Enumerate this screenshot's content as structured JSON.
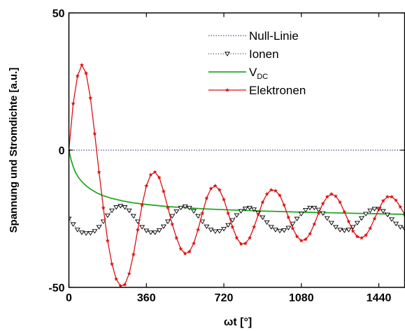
{
  "chart_data": {
    "type": "line",
    "title": "",
    "xlabel": "ωt [°]",
    "ylabel": "Spannung und Stromdichte [a.u.]",
    "xlim": [
      0,
      1560
    ],
    "ylim": [
      -50,
      50
    ],
    "xticks": [
      0,
      360,
      720,
      1080,
      1440
    ],
    "yticks": [
      -50,
      0,
      50
    ],
    "grid": false,
    "legend_position": "top-right",
    "legend": [
      {
        "key": "null",
        "label": "Null-Linie",
        "sub": ""
      },
      {
        "key": "ionen",
        "label": "Ionen",
        "sub": ""
      },
      {
        "key": "vdc",
        "label": "V",
        "sub": "DC"
      },
      {
        "key": "elektronen",
        "label": "Elektronen",
        "sub": ""
      }
    ],
    "series": [
      {
        "key": "null",
        "name": "Null-Linie",
        "style": "dotted",
        "color": "#1a237e",
        "x": [
          0,
          1560
        ],
        "y": [
          0,
          0
        ]
      },
      {
        "key": "vdc",
        "name": "V_DC",
        "style": "solid",
        "color": "#22aa22",
        "x": [
          0,
          10,
          20,
          30,
          45,
          60,
          80,
          100,
          130,
          160,
          200,
          250,
          300,
          360,
          450,
          540,
          630,
          720,
          900,
          1080,
          1260,
          1440,
          1560
        ],
        "y": [
          0,
          -3.5,
          -6.0,
          -8.0,
          -10.0,
          -11.5,
          -13.0,
          -14.2,
          -15.6,
          -16.6,
          -17.6,
          -18.5,
          -19.2,
          -19.8,
          -20.5,
          -21.0,
          -21.4,
          -21.7,
          -22.2,
          -22.6,
          -22.9,
          -23.2,
          -23.4
        ]
      },
      {
        "key": "ionen",
        "name": "Ionen",
        "style": "dotted-triangle",
        "color": "#000000",
        "x": [
          0,
          20,
          40,
          60,
          80,
          100,
          120,
          140,
          160,
          180,
          200,
          220,
          240,
          260,
          280,
          300,
          320,
          340,
          360,
          380,
          400,
          420,
          440,
          460,
          480,
          500,
          520,
          540,
          560,
          580,
          600,
          620,
          640,
          660,
          680,
          700,
          720,
          740,
          760,
          780,
          800,
          820,
          840,
          860,
          880,
          900,
          920,
          940,
          960,
          980,
          1000,
          1020,
          1040,
          1060,
          1080,
          1100,
          1120,
          1140,
          1160,
          1180,
          1200,
          1220,
          1240,
          1260,
          1280,
          1300,
          1320,
          1340,
          1360,
          1380,
          1400,
          1420,
          1440,
          1460,
          1480,
          1500,
          1520,
          1540,
          1560
        ],
        "y": [
          -25.0,
          -27.0,
          -29.0,
          -30.0,
          -30.3,
          -30.2,
          -29.5,
          -28.0,
          -26.0,
          -23.8,
          -22.0,
          -20.8,
          -20.3,
          -20.8,
          -22.0,
          -24.0,
          -26.0,
          -28.0,
          -29.3,
          -30.0,
          -30.0,
          -29.2,
          -27.8,
          -26.0,
          -24.0,
          -22.3,
          -21.0,
          -20.5,
          -21.0,
          -22.2,
          -24.0,
          -26.0,
          -27.8,
          -29.0,
          -29.6,
          -29.5,
          -28.7,
          -27.3,
          -25.5,
          -23.7,
          -22.2,
          -21.3,
          -21.0,
          -21.6,
          -22.8,
          -24.5,
          -26.3,
          -28.0,
          -29.0,
          -29.4,
          -29.2,
          -28.3,
          -26.8,
          -25.0,
          -23.2,
          -21.8,
          -21.0,
          -21.0,
          -21.7,
          -23.0,
          -24.8,
          -26.5,
          -28.0,
          -29.0,
          -29.3,
          -29.0,
          -28.0,
          -26.5,
          -24.8,
          -23.2,
          -22.0,
          -21.4,
          -21.4,
          -22.2,
          -23.5,
          -25.2,
          -26.8,
          -28.0,
          -28.6
        ]
      },
      {
        "key": "elektronen",
        "name": "Elektronen",
        "style": "solid-star",
        "color": "#dd1111",
        "x": [
          0,
          20,
          40,
          60,
          80,
          100,
          120,
          140,
          160,
          180,
          200,
          220,
          240,
          260,
          280,
          300,
          320,
          340,
          360,
          380,
          400,
          420,
          440,
          460,
          480,
          500,
          520,
          540,
          560,
          580,
          600,
          620,
          640,
          660,
          680,
          700,
          720,
          740,
          760,
          780,
          800,
          820,
          840,
          860,
          880,
          900,
          920,
          940,
          960,
          980,
          1000,
          1020,
          1040,
          1060,
          1080,
          1100,
          1120,
          1140,
          1160,
          1180,
          1200,
          1220,
          1240,
          1260,
          1280,
          1300,
          1320,
          1340,
          1360,
          1380,
          1400,
          1420,
          1440,
          1460,
          1480,
          1500,
          1520,
          1540,
          1560
        ],
        "y": [
          0,
          17.0,
          27.0,
          31.0,
          28.0,
          19.0,
          6.0,
          -8.0,
          -21.0,
          -33.0,
          -41.5,
          -47.0,
          -49.5,
          -49.0,
          -45.0,
          -38.0,
          -29.0,
          -20.0,
          -13.0,
          -9.0,
          -8.0,
          -10.0,
          -15.0,
          -21.0,
          -27.0,
          -32.0,
          -36.0,
          -37.7,
          -37.0,
          -34.0,
          -29.0,
          -23.0,
          -17.5,
          -14.0,
          -13.0,
          -14.5,
          -18.0,
          -23.0,
          -28.0,
          -32.0,
          -34.2,
          -34.0,
          -32.0,
          -28.0,
          -23.5,
          -19.0,
          -16.0,
          -14.5,
          -14.8,
          -16.5,
          -20.0,
          -24.5,
          -28.5,
          -31.5,
          -33.0,
          -32.5,
          -30.5,
          -27.0,
          -23.0,
          -19.5,
          -17.0,
          -16.0,
          -16.8,
          -19.0,
          -22.5,
          -26.0,
          -29.5,
          -31.5,
          -32.0,
          -31.0,
          -28.5,
          -25.0,
          -21.5,
          -18.5,
          -17.0,
          -17.0,
          -18.3,
          -20.7,
          -23.5
        ]
      }
    ]
  }
}
